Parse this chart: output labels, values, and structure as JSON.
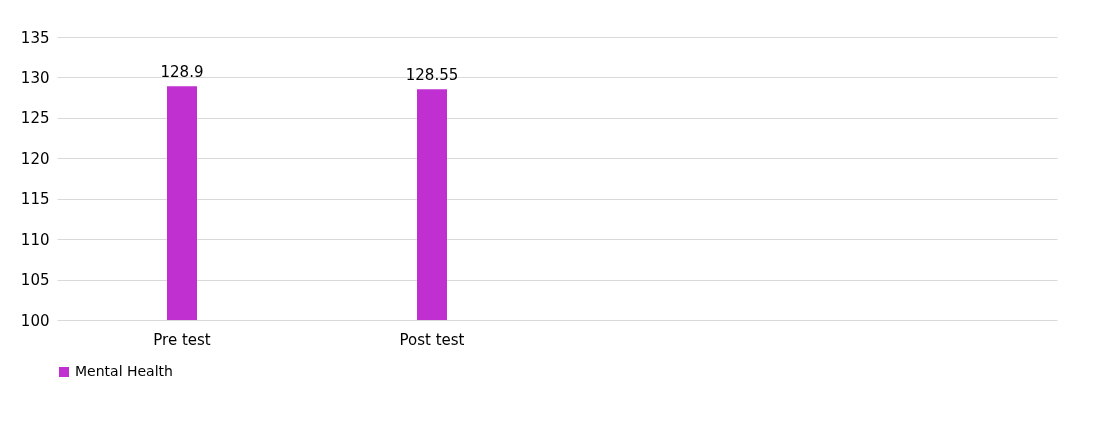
{
  "chart_data": {
    "type": "bar",
    "categories": [
      "Pre test",
      "Post test",
      null,
      null
    ],
    "series": [
      {
        "name": "Mental Health",
        "color": "#c030d0",
        "values": [
          128.9,
          128.55,
          null,
          null
        ]
      }
    ],
    "ylim": [
      100,
      135
    ],
    "yticks": [
      100,
      105,
      110,
      115,
      120,
      125,
      130,
      135
    ],
    "grid": "y",
    "legend": "bottom",
    "data_labels": true
  }
}
